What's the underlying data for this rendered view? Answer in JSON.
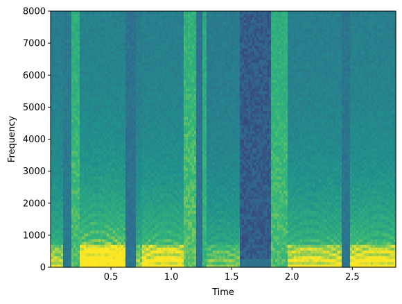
{
  "chart_data": {
    "type": "heatmap",
    "title": "",
    "xlabel": "Time",
    "ylabel": "Frequency",
    "xlim": [
      0.0,
      2.86
    ],
    "ylim": [
      0,
      8000
    ],
    "x_ticks": [
      0.5,
      1.0,
      1.5,
      2.0,
      2.5
    ],
    "x_tick_labels": [
      "0.5",
      "1.0",
      "1.5",
      "2.0",
      "2.5"
    ],
    "y_ticks": [
      0,
      1000,
      2000,
      3000,
      4000,
      5000,
      6000,
      7000,
      8000
    ],
    "y_tick_labels": [
      "0",
      "1000",
      "2000",
      "3000",
      "4000",
      "5000",
      "6000",
      "7000",
      "8000"
    ],
    "colormap": "viridis",
    "colormap_stops": [
      "#440154",
      "#31688e",
      "#21918c",
      "#35b779",
      "#fde725"
    ],
    "grid": false,
    "legend": "none",
    "segments": [
      {
        "start": 0.0,
        "end": 0.1,
        "type": "voiced",
        "strength": 0.7
      },
      {
        "start": 0.1,
        "end": 0.17,
        "type": "dip",
        "strength": 0.35
      },
      {
        "start": 0.17,
        "end": 0.24,
        "type": "fricative",
        "strength": 0.85
      },
      {
        "start": 0.24,
        "end": 0.62,
        "type": "voiced",
        "strength": 0.9
      },
      {
        "start": 0.62,
        "end": 0.7,
        "type": "dip",
        "strength": 0.2
      },
      {
        "start": 0.7,
        "end": 0.75,
        "type": "voiced",
        "strength": 0.65
      },
      {
        "start": 0.75,
        "end": 1.1,
        "type": "voiced",
        "strength": 0.8
      },
      {
        "start": 1.1,
        "end": 1.2,
        "type": "fricative",
        "strength": 0.9
      },
      {
        "start": 1.2,
        "end": 1.25,
        "type": "dip",
        "strength": 0.2
      },
      {
        "start": 1.25,
        "end": 1.3,
        "type": "fricative",
        "strength": 0.75
      },
      {
        "start": 1.3,
        "end": 1.57,
        "type": "voiced",
        "strength": 0.6
      },
      {
        "start": 1.57,
        "end": 1.82,
        "type": "silence",
        "strength": 0.15
      },
      {
        "start": 1.82,
        "end": 1.97,
        "type": "fricative",
        "strength": 0.85
      },
      {
        "start": 1.97,
        "end": 2.42,
        "type": "voiced",
        "strength": 0.75
      },
      {
        "start": 2.42,
        "end": 2.48,
        "type": "dip",
        "strength": 0.25
      },
      {
        "start": 2.48,
        "end": 2.86,
        "type": "voiced",
        "strength": 0.8
      }
    ]
  }
}
